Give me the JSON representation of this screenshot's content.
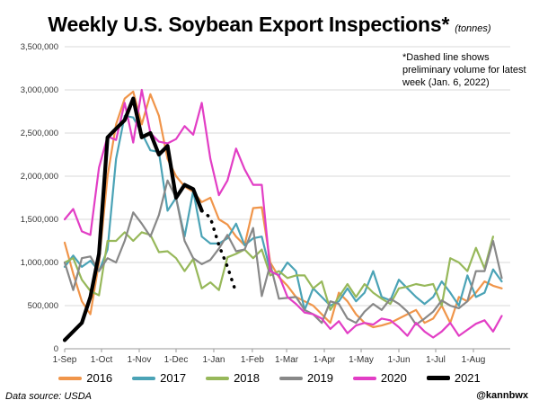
{
  "chart_data": {
    "type": "line",
    "title": "Weekly U.S. Soybean Export Inspections*",
    "subtitle": "(tonnes)",
    "note": "*Dashed line shows preliminary volume for latest week (Jan. 6, 2022)",
    "ylim": [
      0,
      3500000
    ],
    "yticks": [
      0,
      500000,
      1000000,
      1500000,
      2000000,
      2500000,
      3000000,
      3500000
    ],
    "ytick_labels": [
      "0",
      "500,000",
      "1,000,000",
      "1,500,000",
      "2,000,000",
      "2,500,000",
      "3,000,000",
      "3,500,000"
    ],
    "xlim": [
      0,
      52
    ],
    "xticks": [
      0,
      4.3,
      8.7,
      13,
      17.4,
      21.9,
      25.9,
      30.3,
      34.6,
      39,
      43.3,
      47.7
    ],
    "xtick_labels": [
      "1-Sep",
      "1-Oct",
      "1-Nov",
      "1-Dec",
      "1-Jan",
      "1-Feb",
      "1-Mar",
      "1-Apr",
      "1-May",
      "1-Jun",
      "1-Jul",
      "1-Aug"
    ],
    "grid": "horizontal",
    "legend_position": "bottom",
    "series": [
      {
        "name": "2016",
        "color": "#f0954a",
        "width": 2.2,
        "values": [
          1230000,
          870000,
          550000,
          400000,
          1000000,
          2000000,
          2600000,
          2900000,
          2980000,
          2600000,
          2950000,
          2700000,
          2200000,
          2000000,
          1880000,
          1820000,
          1700000,
          1750000,
          1500000,
          1440000,
          1300000,
          1200000,
          1630000,
          1640000,
          1000000,
          830000,
          730000,
          600000,
          550000,
          500000,
          400000,
          300000,
          650000,
          550000,
          400000,
          300000,
          250000,
          270000,
          300000,
          350000,
          400000,
          450000,
          300000,
          350000,
          500000,
          300000,
          600000,
          550000,
          650000,
          780000,
          730000,
          700000
        ]
      },
      {
        "name": "2017",
        "color": "#4ba3b6",
        "width": 2.2,
        "values": [
          950000,
          1080000,
          950000,
          1020000,
          900000,
          1150000,
          2200000,
          2700000,
          2680000,
          2500000,
          2300000,
          2280000,
          1600000,
          1750000,
          1300000,
          1830000,
          1300000,
          1220000,
          1220000,
          1280000,
          1450000,
          1200000,
          1280000,
          1300000,
          900000,
          850000,
          1000000,
          900000,
          450000,
          700000,
          600000,
          500000,
          550000,
          700000,
          550000,
          650000,
          900000,
          600000,
          560000,
          800000,
          700000,
          600000,
          520000,
          600000,
          780000,
          650000,
          500000,
          850000,
          600000,
          650000,
          920000,
          780000
        ]
      },
      {
        "name": "2018",
        "color": "#97b85a",
        "width": 2.2,
        "values": [
          1000000,
          1050000,
          800000,
          670000,
          620000,
          1250000,
          1250000,
          1350000,
          1250000,
          1350000,
          1320000,
          1120000,
          1130000,
          1050000,
          900000,
          1040000,
          700000,
          770000,
          680000,
          1060000,
          1100000,
          1150000,
          1050000,
          1150000,
          850000,
          900000,
          820000,
          850000,
          850000,
          700000,
          780000,
          450000,
          600000,
          750000,
          600000,
          750000,
          650000,
          580000,
          520000,
          700000,
          720000,
          750000,
          730000,
          750000,
          500000,
          1050000,
          1000000,
          900000,
          1170000,
          930000,
          1300000
        ]
      },
      {
        "name": "2019",
        "color": "#888888",
        "width": 2.2,
        "values": [
          1000000,
          680000,
          1050000,
          1070000,
          900000,
          1050000,
          1000000,
          1250000,
          1580000,
          1450000,
          1300000,
          1550000,
          1950000,
          1750000,
          1250000,
          1050000,
          980000,
          1030000,
          1160000,
          1320000,
          1130000,
          1150000,
          1400000,
          610000,
          980000,
          580000,
          590000,
          600000,
          450000,
          400000,
          300000,
          550000,
          520000,
          350000,
          300000,
          430000,
          520000,
          450000,
          580000,
          520000,
          430000,
          280000,
          350000,
          430000,
          560000,
          500000,
          470000,
          550000,
          900000,
          900000,
          1250000,
          820000
        ]
      },
      {
        "name": "2020",
        "color": "#e23ec5",
        "width": 2.2,
        "values": [
          1500000,
          1620000,
          1360000,
          1320000,
          2100000,
          2460000,
          2420000,
          2850000,
          2390000,
          3000000,
          2500000,
          2400000,
          2380000,
          2430000,
          2580000,
          2480000,
          2850000,
          2200000,
          1780000,
          1950000,
          2320000,
          2080000,
          1900000,
          1900000,
          900000,
          850000,
          600000,
          520000,
          420000,
          400000,
          350000,
          230000,
          320000,
          180000,
          270000,
          300000,
          280000,
          350000,
          330000,
          250000,
          150000,
          300000,
          200000,
          130000,
          200000,
          300000,
          150000,
          220000,
          290000,
          330000,
          200000,
          380000
        ]
      },
      {
        "name": "2021",
        "color": "#000000",
        "width": 4.2,
        "values": [
          100000,
          200000,
          300000,
          600000,
          1100000,
          2450000,
          2550000,
          2650000,
          2900000,
          2450000,
          2500000,
          2250000,
          2350000,
          1750000,
          1900000,
          1850000,
          1600000
        ]
      },
      {
        "name": "",
        "legend": false,
        "color": "#000000",
        "width": 3.5,
        "dotted": true,
        "x_start": 16,
        "values": [
          1600000,
          1520000,
          1200000,
          950000,
          650000
        ]
      }
    ]
  },
  "footer": {
    "source": "Data source: USDA",
    "handle": "@kannbwx"
  }
}
